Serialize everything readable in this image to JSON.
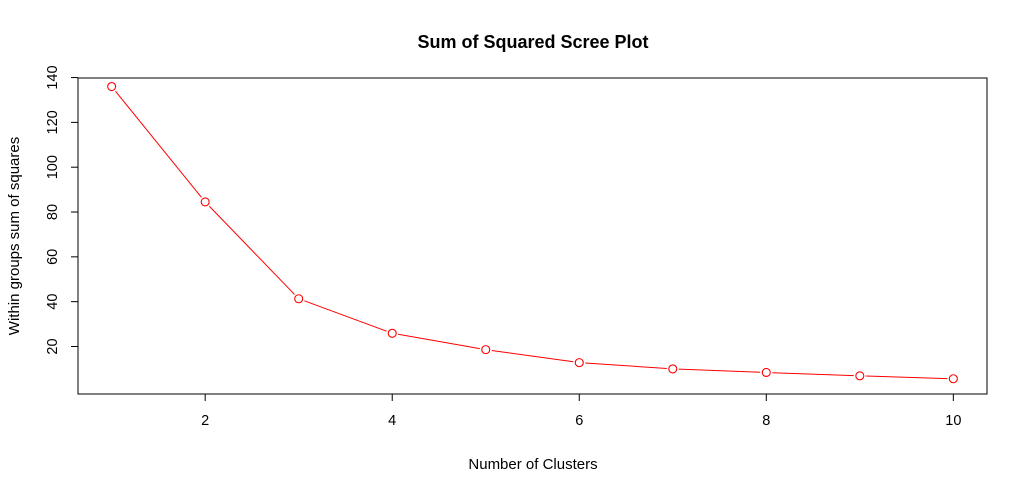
{
  "chart_data": {
    "type": "line",
    "title": "Sum of Squared Scree Plot",
    "xlabel": "Number of Clusters",
    "ylabel": "Within groups sum of squares",
    "x": [
      1,
      2,
      3,
      4,
      5,
      6,
      7,
      8,
      9,
      10
    ],
    "series": [
      {
        "values": [
          136,
          84.5,
          41.3,
          25.9,
          18.6,
          12.8,
          10.0,
          8.4,
          6.9,
          5.6
        ],
        "color": "#ff0000",
        "marker": "open-circle"
      }
    ],
    "xticks": [
      2,
      4,
      6,
      8,
      10
    ],
    "yticks": [
      20,
      40,
      60,
      80,
      100,
      120,
      140
    ],
    "xlim": [
      0.64,
      10.36
    ],
    "ylim": [
      -1.2,
      139.8
    ],
    "grid": false,
    "legend": "none"
  }
}
